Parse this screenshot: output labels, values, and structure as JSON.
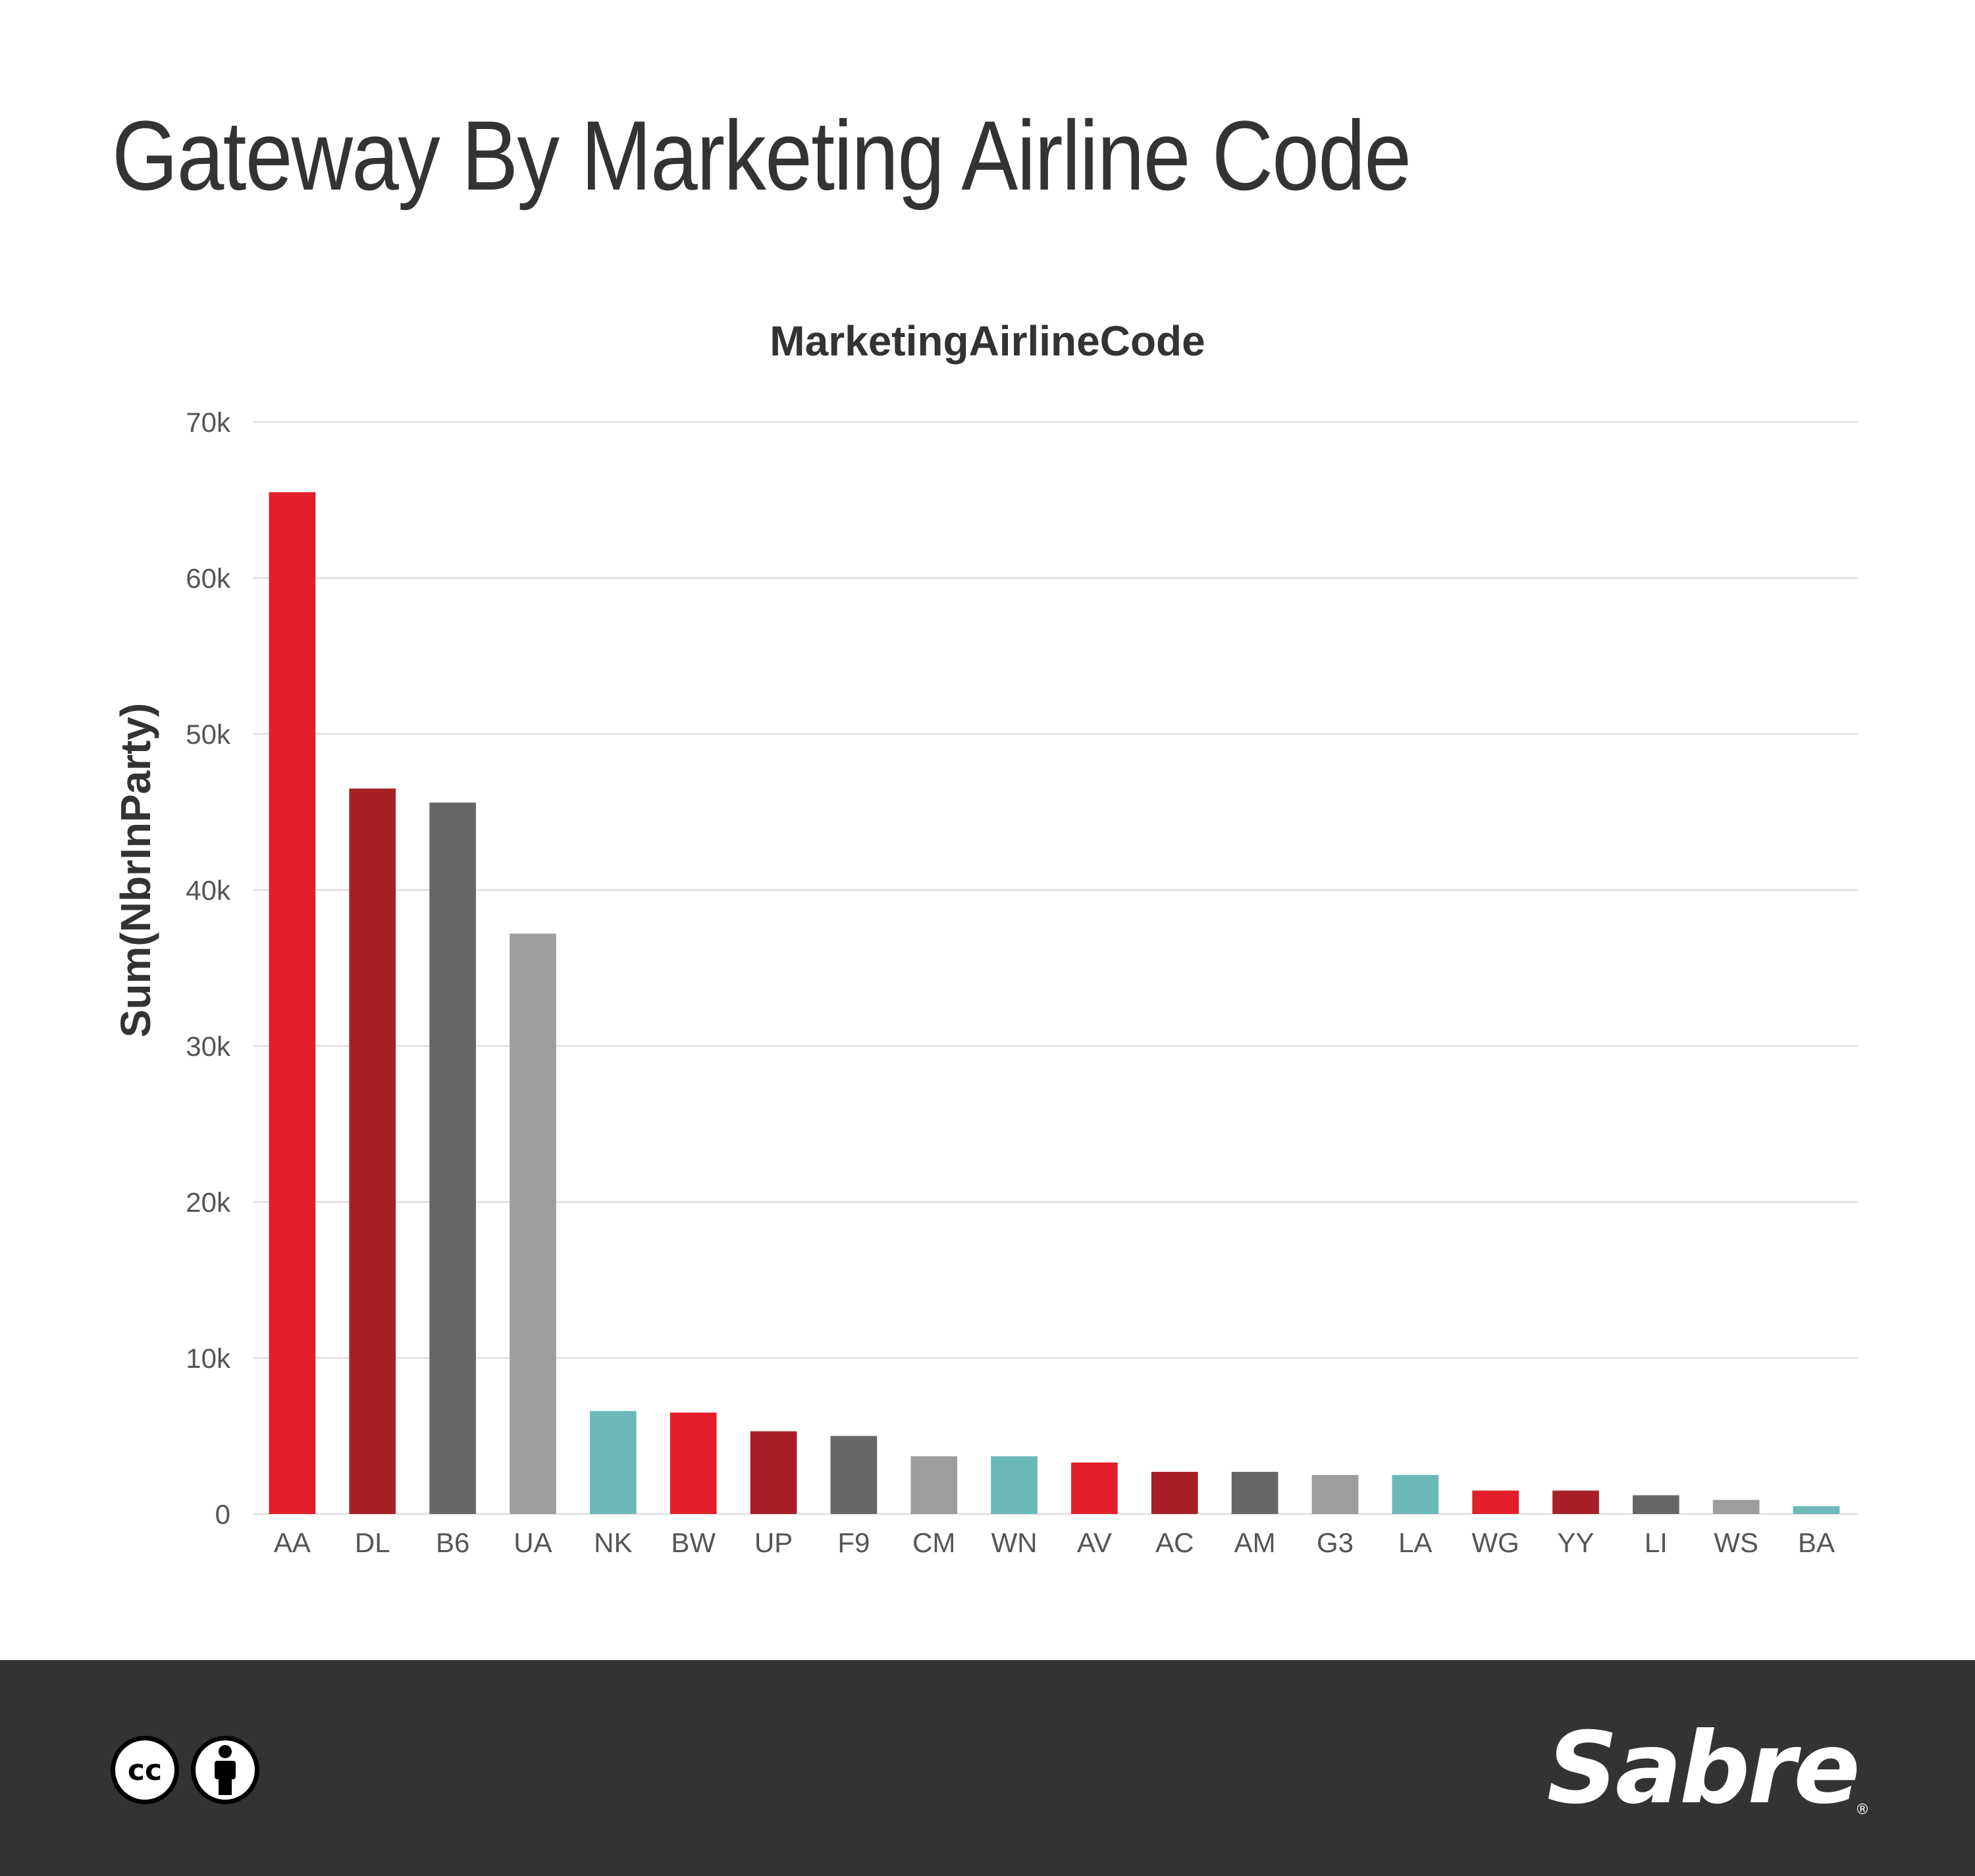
{
  "page": {
    "title": "Gateway By Marketing Airline Code"
  },
  "chart_data": {
    "type": "bar",
    "title": "MarketingAirlineCode",
    "xlabel": "",
    "ylabel": "Sum(NbrInParty)",
    "ylim": [
      0,
      70000
    ],
    "yticks": [
      0,
      10000,
      20000,
      30000,
      40000,
      50000,
      60000,
      70000
    ],
    "ytick_labels": [
      "0",
      "10k",
      "20k",
      "30k",
      "40k",
      "50k",
      "60k",
      "70k"
    ],
    "grid": true,
    "categories": [
      "AA",
      "DL",
      "B6",
      "UA",
      "NK",
      "BW",
      "UP",
      "F9",
      "CM",
      "WN",
      "AV",
      "AC",
      "AM",
      "G3",
      "LA",
      "WG",
      "YY",
      "LI",
      "WS",
      "BA"
    ],
    "values": [
      65500,
      46500,
      45600,
      37200,
      6600,
      6500,
      5300,
      5000,
      3700,
      3700,
      3300,
      2700,
      2700,
      2500,
      2500,
      1500,
      1500,
      1200,
      900,
      500
    ],
    "bar_colors": [
      "#e31e2a",
      "#a81f27",
      "#666666",
      "#9d9d9d",
      "#6bbab9",
      "#e31e2a",
      "#a81f27",
      "#666666",
      "#9d9d9d",
      "#6bbab9",
      "#e31e2a",
      "#a81f27",
      "#666666",
      "#9d9d9d",
      "#6bbab9",
      "#e31e2a",
      "#a81f27",
      "#666666",
      "#9d9d9d",
      "#6bbab9"
    ]
  },
  "footer": {
    "license_icons": [
      "cc-icon",
      "attribution-icon"
    ],
    "cc_text": "cc",
    "logo_text": "Sabre",
    "logo_reg": "®"
  }
}
